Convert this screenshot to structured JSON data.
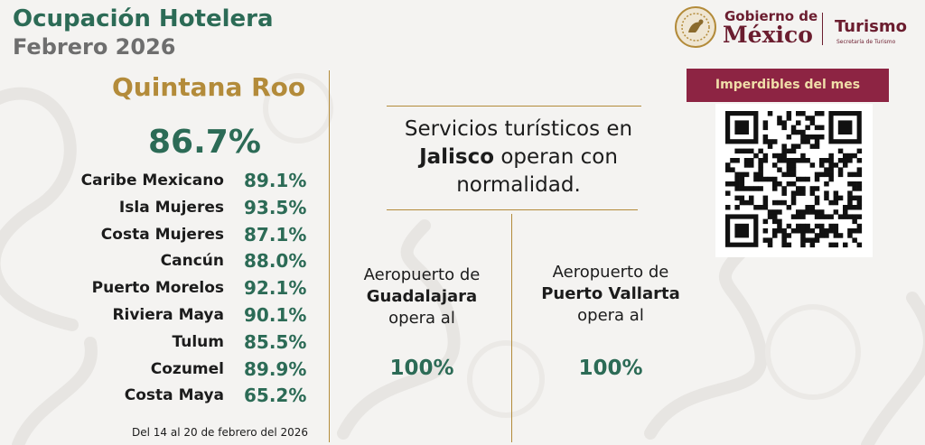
{
  "header": {
    "title": "Ocupación Hotelera",
    "subtitle": "Febrero 2026"
  },
  "logos": {
    "gobierno": "Gobierno de",
    "mexico": "México",
    "turismo": "Turismo",
    "secretaria": "Secretaría de Turismo",
    "seal_icon": "eagle-seal-icon"
  },
  "state": {
    "name": "Quintana Roo",
    "total": "86.7%",
    "destinations": [
      {
        "name": "Caribe Mexicano",
        "pct": "89.1%"
      },
      {
        "name": "Isla Mujeres",
        "pct": "93.5%"
      },
      {
        "name": "Costa Mujeres",
        "pct": "87.1%"
      },
      {
        "name": "Cancún",
        "pct": "88.0%"
      },
      {
        "name": "Puerto Morelos",
        "pct": "92.1%"
      },
      {
        "name": "Riviera Maya",
        "pct": "90.1%"
      },
      {
        "name": "Tulum",
        "pct": "85.5%"
      },
      {
        "name": "Cozumel",
        "pct": "89.9%"
      },
      {
        "name": "Costa Maya",
        "pct": "65.2%"
      }
    ],
    "footnote": "Del 14 al 20 de febrero del 2026"
  },
  "services": {
    "line1": "Servicios turísticos en",
    "state": "Jalisco",
    "line2_rest": " operan con",
    "line3": "normalidad."
  },
  "airports": [
    {
      "prefix": "Aeropuerto de",
      "name": "Guadalajara",
      "suffix": "opera al",
      "pct": "100%"
    },
    {
      "prefix": "Aeropuerto de",
      "name": "Puerto Vallarta",
      "suffix": "opera al",
      "pct": "100%"
    }
  ],
  "imperdibles": {
    "label": "Imperdibles del mes",
    "qr_icon": "qr-code-icon"
  },
  "colors": {
    "green": "#2c6b56",
    "gold": "#b38b3a",
    "wine": "#8d2443",
    "gray": "#6e6e6e"
  }
}
